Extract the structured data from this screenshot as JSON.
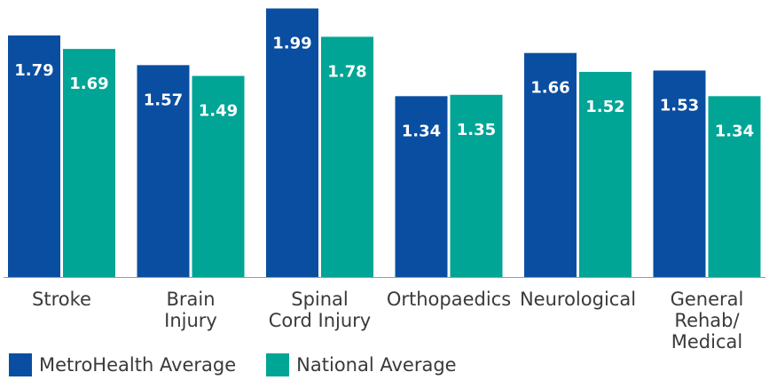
{
  "colors": {
    "metrohealth": "#0a4ea1",
    "national": "#00a595",
    "axis": "#9a9a9a",
    "text": "#3a3a3a"
  },
  "chart_data": {
    "type": "bar",
    "categories": [
      "Stroke",
      "Brain Injury",
      "Spinal Cord Injury",
      "Orthopaedics",
      "Neurological",
      "General Rehab/ Medical"
    ],
    "category_lines": [
      [
        "Stroke"
      ],
      [
        "Brain",
        "Injury"
      ],
      [
        "Spinal",
        "Cord Injury"
      ],
      [
        "Orthopaedics"
      ],
      [
        "Neurological"
      ],
      [
        "General",
        "Rehab/",
        "Medical"
      ]
    ],
    "series": [
      {
        "name": "MetroHealth Average",
        "values": [
          1.79,
          1.57,
          1.99,
          1.34,
          1.66,
          1.53
        ]
      },
      {
        "name": "National Average",
        "values": [
          1.69,
          1.49,
          1.78,
          1.35,
          1.52,
          1.34
        ]
      }
    ],
    "ylim": [
      0,
      2.0
    ],
    "grid": false,
    "legend_position": "bottom-left",
    "title": "",
    "xlabel": "",
    "ylabel": ""
  }
}
